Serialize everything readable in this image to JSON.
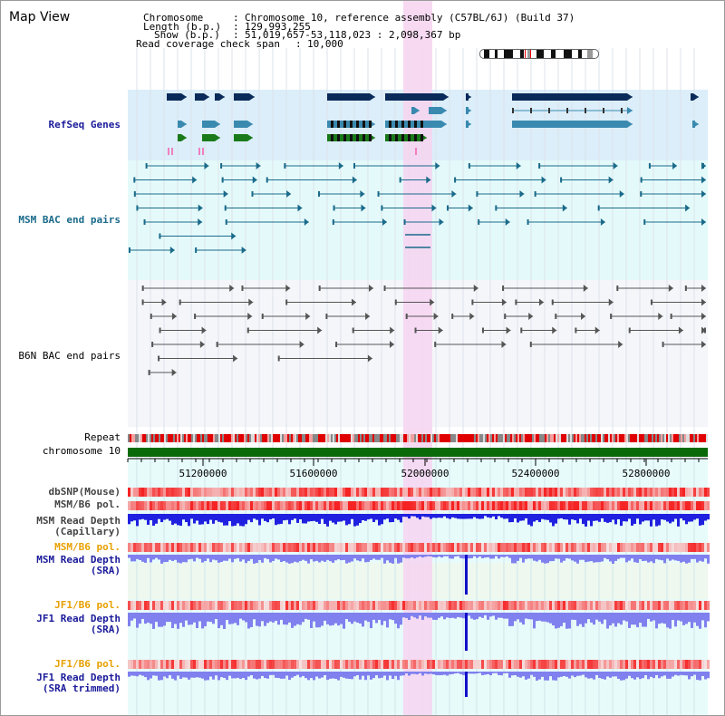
{
  "view_title": "Map View",
  "header": {
    "chromosome_label": "Chromosome",
    "chromosome_value": "Chromosome 10, reference assembly (C57BL/6J) (Build 37)",
    "length_label": "Length (b.p.)",
    "length_value": "129,993,255",
    "show_label": "Show (b.p.)",
    "show_value": "51,019,657-53,118,023 : 2,098,367 bp",
    "coverage_label": "Read coverage check span",
    "coverage_value": "10,000"
  },
  "tracks": {
    "refseq": "RefSeq Genes",
    "msm_bac": "MSM BAC end pairs",
    "b6n_bac": "B6N BAC end pairs",
    "repeat": "Repeat",
    "chromosome": "chromosome 10",
    "dbsnp": "dbSNP(Mouse)",
    "msm_b6_pol_1": "MSM/B6 pol.",
    "msm_depth_cap_1": "MSM Read Depth",
    "msm_depth_cap_2": "(Capillary)",
    "msm_b6_pol_2": "MSM/B6 pol.",
    "msm_depth_sra_1": "MSM Read Depth",
    "msm_depth_sra_2": "(SRA)",
    "jf1_pol_1": "JF1/B6 pol.",
    "jf1_depth_sra_1": "JF1 Read Depth",
    "jf1_depth_sra_2": "(SRA)",
    "jf1_pol_2": "JF1/B6 pol.",
    "jf1_depth_trim_1": "JF1 Read Depth",
    "jf1_depth_trim_2": "(SRA trimmed)"
  },
  "axis_ticks": [
    "51200000",
    "51600000",
    "52000000",
    "52400000",
    "52800000"
  ],
  "colors": {
    "refseq_bg": "#dbeef9",
    "msm_bac_bg": "#e4fafa",
    "b6n_bac_bg": "#f5f6fa",
    "highlight": "#f6d4f0",
    "label_navy": "#1a1a9a",
    "label_orange": "#e8a000",
    "label_teal": "#1a6a8a",
    "gene_dark": "#0a2a5a",
    "gene_mid": "#3a8ab0",
    "gene_green": "#1a7a1a",
    "chromosome_bar": "#0a6a0a",
    "depth_blue": "#2020e0",
    "depth_light": "#8080ee"
  }
}
